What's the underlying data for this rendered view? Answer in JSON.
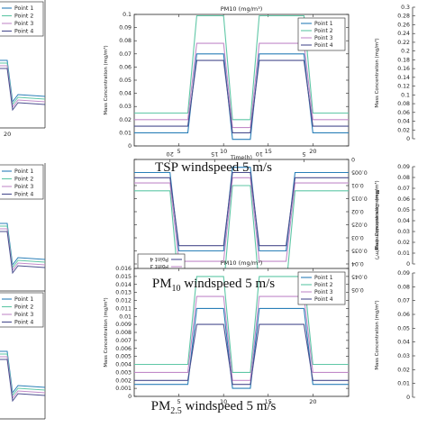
{
  "captions": {
    "tsp": "TSP windspeed 5 m/s",
    "pm10_prefix": "PM",
    "pm10_sub": "10",
    "pm10_suffix": " windspeed 5 m/s",
    "pm25_prefix": "PM",
    "pm25_sub": "2.5",
    "pm25_suffix": " windspeed 5 m/s"
  },
  "colors": {
    "point1": "#2a7fb8",
    "point2": "#5fc7a6",
    "point3": "#c28bc9",
    "point4": "#4b4f8f"
  },
  "chart_data": [
    {
      "type": "line",
      "title": "PM10 (mg/m³)",
      "xlabel": "Time(h)",
      "ylabel": "Mass Concentration (mg/m³)",
      "ylim": [
        0,
        0.1
      ],
      "xlim": [
        0,
        24
      ],
      "xticks": [
        5,
        10,
        15,
        20
      ],
      "yticks": [
        "0",
        "0.01",
        "0.02",
        "0.03",
        "0.04",
        "0.05",
        "0.06",
        "0.07",
        "0.08",
        "0.09",
        "0.1"
      ],
      "legend": "top-right",
      "series": [
        {
          "name": "Point 1",
          "x": [
            0,
            6,
            7,
            10,
            11,
            13,
            14,
            19,
            20,
            24
          ],
          "values": [
            0.01,
            0.01,
            0.07,
            0.07,
            0.005,
            0.005,
            0.07,
            0.07,
            0.01,
            0.01
          ]
        },
        {
          "name": "Point 2",
          "x": [
            0,
            6,
            7,
            10,
            11,
            13,
            14,
            19,
            20,
            24
          ],
          "values": [
            0.025,
            0.025,
            0.099,
            0.099,
            0.02,
            0.02,
            0.099,
            0.099,
            0.025,
            0.025
          ]
        },
        {
          "name": "Point 3",
          "x": [
            0,
            6,
            7,
            10,
            11,
            13,
            14,
            19,
            20,
            24
          ],
          "values": [
            0.02,
            0.02,
            0.078,
            0.078,
            0.014,
            0.014,
            0.078,
            0.078,
            0.02,
            0.02
          ]
        },
        {
          "name": "Point 4",
          "x": [
            0,
            6,
            7,
            10,
            11,
            13,
            14,
            19,
            20,
            24
          ],
          "values": [
            0.015,
            0.015,
            0.065,
            0.065,
            0.01,
            0.01,
            0.065,
            0.065,
            0.015,
            0.015
          ]
        }
      ]
    },
    {
      "type": "line",
      "title": "PM10 (mg/m³)",
      "xlabel": "",
      "ylabel": "Mass Concentration (mg/m³)",
      "ylim": [
        0,
        0.05
      ],
      "xlim": [
        0,
        24
      ],
      "xticks": [
        5,
        10,
        15,
        20
      ],
      "yticks": [
        "0",
        "0.005",
        "0.01",
        "0.015",
        "0.02",
        "0.025",
        "0.03",
        "0.035",
        "0.04",
        "0.045",
        "0.05"
      ],
      "legend": "top-right",
      "rotated": true,
      "series": [
        {
          "name": "Point 1",
          "x": [
            0,
            6,
            7,
            10,
            11,
            13,
            14,
            19,
            20,
            24
          ],
          "values": [
            0.005,
            0.005,
            0.035,
            0.035,
            0.003,
            0.003,
            0.035,
            0.035,
            0.005,
            0.005
          ]
        },
        {
          "name": "Point 2",
          "x": [
            0,
            6,
            7,
            10,
            11,
            13,
            14,
            19,
            20,
            24
          ],
          "values": [
            0.012,
            0.012,
            0.049,
            0.049,
            0.01,
            0.01,
            0.049,
            0.049,
            0.012,
            0.012
          ]
        },
        {
          "name": "Point 3",
          "x": [
            0,
            6,
            7,
            10,
            11,
            13,
            14,
            19,
            20,
            24
          ],
          "values": [
            0.009,
            0.009,
            0.039,
            0.039,
            0.007,
            0.007,
            0.039,
            0.039,
            0.009,
            0.009
          ]
        },
        {
          "name": "Point 4",
          "x": [
            0,
            6,
            7,
            10,
            11,
            13,
            14,
            19,
            20,
            24
          ],
          "values": [
            0.007,
            0.007,
            0.033,
            0.033,
            0.005,
            0.005,
            0.033,
            0.033,
            0.007,
            0.007
          ]
        }
      ]
    },
    {
      "type": "line",
      "title": "PM10 (mg/m³)",
      "xlabel": "",
      "ylabel": "Mass Concentration (mg/m³)",
      "ylim": [
        0,
        0.016
      ],
      "xlim": [
        0,
        24
      ],
      "xticks": [
        5,
        10,
        15,
        20
      ],
      "yticks": [
        "0",
        "0.001",
        "0.002",
        "0.003",
        "0.004",
        "0.005",
        "0.006",
        "0.007",
        "0.008",
        "0.009",
        "0.01",
        "0.011",
        "0.012",
        "0.013",
        "0.014",
        "0.015",
        "0.016"
      ],
      "legend": "top-right",
      "series": [
        {
          "name": "Point 1",
          "x": [
            0,
            6,
            7,
            10,
            11,
            13,
            14,
            19,
            20,
            24
          ],
          "values": [
            0.0015,
            0.0015,
            0.011,
            0.011,
            0.001,
            0.001,
            0.011,
            0.011,
            0.0015,
            0.0015
          ]
        },
        {
          "name": "Point 2",
          "x": [
            0,
            6,
            7,
            10,
            11,
            13,
            14,
            19,
            20,
            24
          ],
          "values": [
            0.004,
            0.004,
            0.015,
            0.015,
            0.003,
            0.003,
            0.015,
            0.015,
            0.004,
            0.004
          ]
        },
        {
          "name": "Point 3",
          "x": [
            0,
            6,
            7,
            10,
            11,
            13,
            14,
            19,
            20,
            24
          ],
          "values": [
            0.003,
            0.003,
            0.0125,
            0.0125,
            0.002,
            0.002,
            0.0125,
            0.0125,
            0.003,
            0.003
          ]
        },
        {
          "name": "Point 4",
          "x": [
            0,
            6,
            7,
            10,
            11,
            13,
            14,
            19,
            20,
            24
          ],
          "values": [
            0.002,
            0.002,
            0.009,
            0.009,
            0.0015,
            0.0015,
            0.009,
            0.009,
            0.002,
            0.002
          ]
        }
      ]
    }
  ],
  "side_fragments": {
    "left_legends": [
      [
        "Point 1",
        "Point 2",
        "Point 3",
        "Point 4"
      ],
      [
        "Point 1",
        "Point 2",
        "Point 3",
        "Point 4"
      ],
      [
        "Point 1",
        "Point 2",
        "Point 3",
        "Point 4"
      ]
    ],
    "left_xtick": "20",
    "right_top_yticks": [
      "0.3",
      "0.28",
      "0.26",
      "0.24",
      "0.22",
      "0.2",
      "0.18",
      "0.16",
      "0.14",
      "0.12",
      "0.1",
      "0.08",
      "0.06",
      "0.04",
      "0.02",
      "0"
    ],
    "right_mid_yticks": [
      "0.09",
      "0.08",
      "0.07",
      "0.06",
      "0.05",
      "0.04",
      "0.03",
      "0.02",
      "0.01",
      "0"
    ],
    "right_bot_yticks": [
      "0.09",
      "0.08",
      "0.07",
      "0.06",
      "0.05",
      "0.04",
      "0.03",
      "0.02",
      "0.01",
      "0"
    ],
    "right_ylabel": "Mass Concentration (mg/m³)"
  }
}
